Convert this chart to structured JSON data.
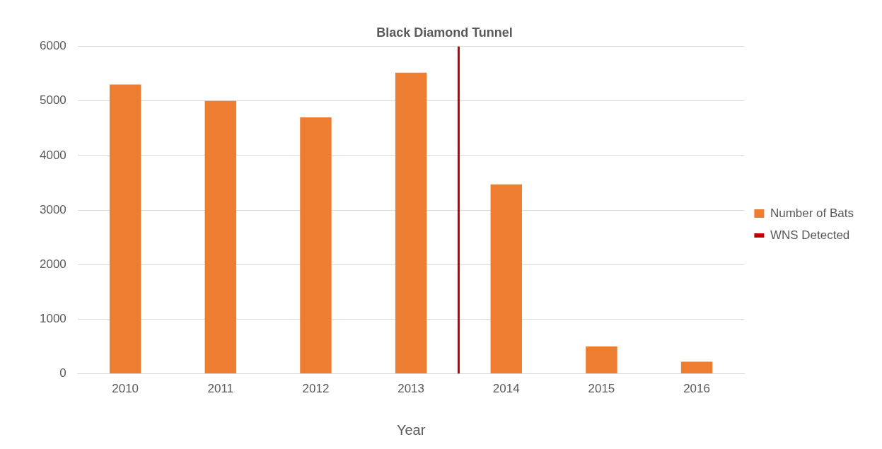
{
  "chart_data": {
    "type": "bar",
    "title": "Black Diamond Tunnel",
    "xlabel": "Year",
    "x": [
      2010,
      2011,
      2012,
      2013,
      2014,
      2015,
      2016
    ],
    "xlim": [
      2009.5,
      2016.5
    ],
    "xticks": [
      2010,
      2011,
      2012,
      2013,
      2014,
      2015,
      2016
    ],
    "series": [
      {
        "name": "Number of Bats",
        "color": "#ed7d31",
        "values": [
          5300,
          5000,
          4700,
          5520,
          3470,
          500,
          220
        ]
      },
      {
        "name": "WNS Detected",
        "type": "line",
        "color": "#c00000",
        "x": [
          2013.5,
          2013.5
        ],
        "values": [
          0,
          6000
        ]
      }
    ],
    "ylim": [
      0,
      6000
    ],
    "yticks": [
      0,
      1000,
      2000,
      3000,
      4000,
      5000,
      6000
    ],
    "marker": "none",
    "grid": "y",
    "legend": "right"
  }
}
